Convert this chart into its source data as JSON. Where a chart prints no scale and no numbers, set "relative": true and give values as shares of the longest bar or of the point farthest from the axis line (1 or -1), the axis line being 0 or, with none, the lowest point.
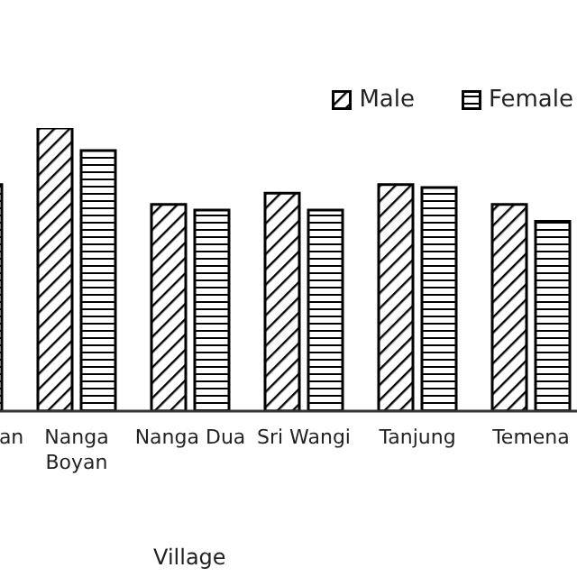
{
  "chart_data": {
    "type": "bar",
    "xlabel": "Village",
    "categories": [
      "an",
      "Nanga Boyan",
      "Nanga Dua",
      "Sri Wangi",
      "Tanjung",
      "Temena"
    ],
    "relative": true,
    "legend": "top right",
    "grid": false,
    "series": [
      {
        "name": "Male",
        "color": "#000000",
        "values": [
          null,
          1,
          0.73,
          0.77,
          0.8,
          0.73
        ]
      },
      {
        "name": "Female",
        "color": "#000000",
        "values": [
          0.8,
          0.92,
          0.71,
          0.71,
          0.79,
          0.67
        ]
      }
    ]
  }
}
